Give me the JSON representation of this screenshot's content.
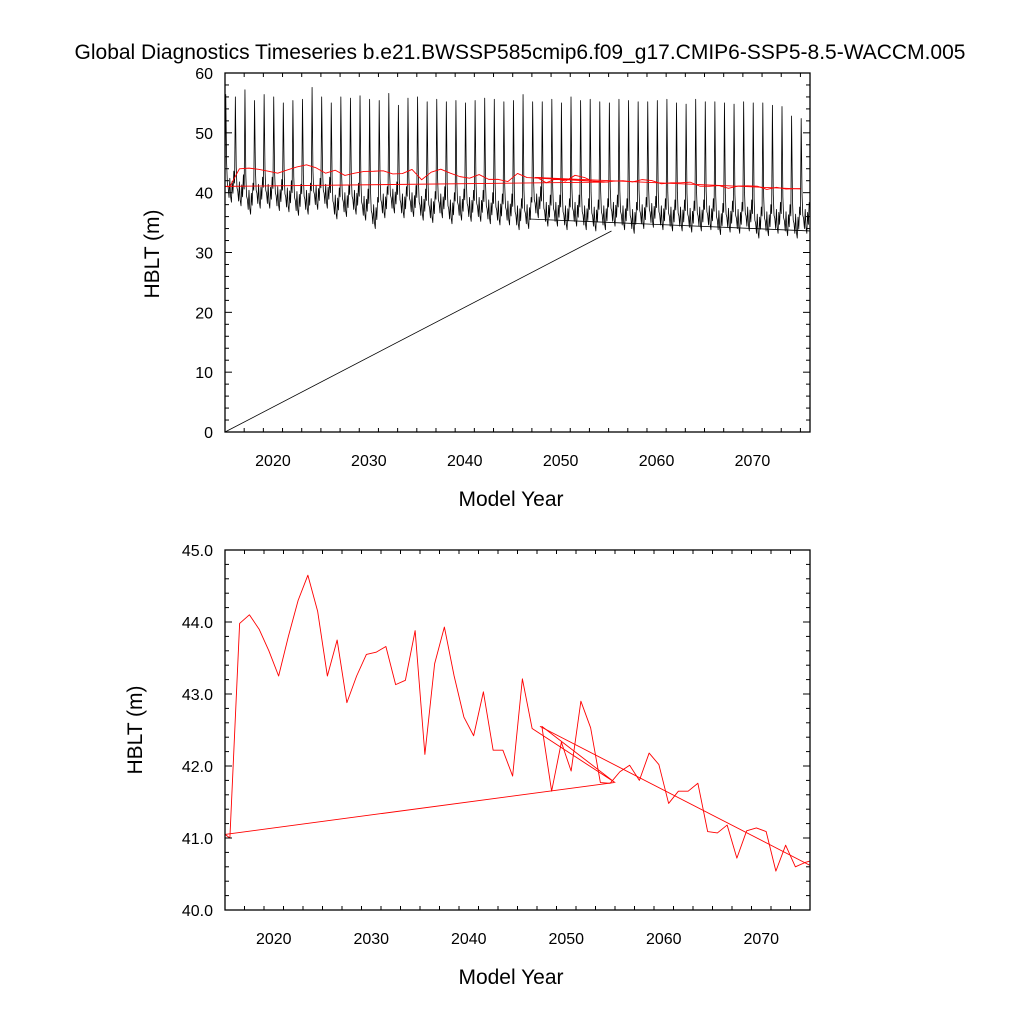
{
  "title": "Global Diagnostics Timeseries b.e21.BWSSP585cmip6.f09_g17.CMIP6-SSP5-8.5-WACCM.005",
  "colors": {
    "monthly": "#000000",
    "annual": "#ff0000",
    "frame": "#000000"
  },
  "chart_data": [
    {
      "type": "line",
      "xlabel": "Model Year",
      "ylabel": "HBLT (m)",
      "xlim": [
        2015,
        2076
      ],
      "ylim": [
        0,
        60
      ],
      "xticks": [
        2020,
        2030,
        2040,
        2050,
        2060,
        2070
      ],
      "xtick_labels": [
        "2020",
        "2030",
        "2040",
        "2050",
        "2060",
        "2070"
      ],
      "yticks": [
        0,
        10,
        20,
        30,
        40,
        50,
        60
      ],
      "ytick_labels": [
        "0",
        "10",
        "20",
        "30",
        "40",
        "50",
        "60"
      ],
      "series": [
        {
          "name": "monthly",
          "color": "#000000",
          "monthly_start_year": 2015,
          "monthly_peaks": [
            56.4,
            56.0,
            57.2,
            55.4,
            56.4,
            56.0,
            55.0,
            55.4,
            55.6,
            57.6,
            56.0,
            55.0,
            56.0,
            55.8,
            56.2,
            55.6,
            55.4,
            56.6,
            54.6,
            55.8,
            56.0,
            55.2,
            55.6,
            55.2,
            55.4,
            55.0,
            55.4,
            55.8,
            55.6,
            55.2,
            55.4,
            56.4,
            55.2,
            55.2,
            55.6,
            55.0,
            56.0,
            55.4,
            55.6,
            55.2,
            55.0,
            55.6,
            55.4,
            55.2,
            55.2,
            55.4,
            55.6,
            55.0,
            54.8,
            55.6,
            55.2,
            55.2,
            55.0,
            54.8,
            55.2,
            55.0,
            55.0,
            54.6,
            54.4,
            52.8,
            52.4
          ],
          "monthly_troughs": [
            38.4,
            37.8,
            36.4,
            37.4,
            37.4,
            37.0,
            36.8,
            36.2,
            36.4,
            37.2,
            37.4,
            35.6,
            36.0,
            36.4,
            35.4,
            34.0,
            35.8,
            36.6,
            35.8,
            36.0,
            35.4,
            35.0,
            35.8,
            34.8,
            35.4,
            35.2,
            35.2,
            34.8,
            34.6,
            34.6,
            33.8,
            34.0,
            35.8,
            34.4,
            34.4,
            33.8,
            34.4,
            33.8,
            33.6,
            33.8,
            34.4,
            33.8,
            33.2,
            34.0,
            34.2,
            33.8,
            33.6,
            33.6,
            33.4,
            33.6,
            33.8,
            33.0,
            33.4,
            33.2,
            33.6,
            32.4,
            32.8,
            33.2,
            32.8,
            32.4,
            33.2
          ],
          "wrap_segments": [
            {
              "x": [
                2015.0,
                2055.3
              ],
              "y": [
                0.0,
                33.6
              ]
            },
            {
              "x": [
                2046.7,
                2076.0
              ],
              "y": [
                35.6,
                33.6
              ]
            }
          ]
        },
        {
          "name": "annual",
          "color": "#ff0000",
          "x": [
            2015.0,
            2015.5,
            2016.5,
            2017.5,
            2018.5,
            2019.5,
            2020.5,
            2021.5,
            2022.5,
            2023.5,
            2024.5,
            2025.5,
            2026.5,
            2027.5,
            2028.5,
            2029.5,
            2030.5,
            2031.5,
            2032.5,
            2033.5,
            2034.5,
            2035.5,
            2036.5,
            2037.5,
            2038.5,
            2039.5,
            2040.5,
            2041.5,
            2042.5,
            2043.5,
            2044.5,
            2045.5,
            2046.5,
            2055.0,
            2047.5,
            2048.5,
            2049.5,
            2050.5,
            2051.5,
            2052.5,
            2053.5,
            2054.5,
            2055.5,
            2056.5,
            2057.5,
            2058.5,
            2059.5,
            2060.5,
            2061.5,
            2062.5,
            2063.5,
            2064.5,
            2065.5,
            2066.5,
            2067.5,
            2068.5,
            2069.5,
            2070.5,
            2071.5,
            2072.5,
            2073.5,
            2074.5,
            2075.0
          ],
          "y": [
            41.05,
            41.0,
            43.98,
            44.1,
            43.9,
            43.6,
            43.25,
            43.8,
            44.3,
            44.65,
            44.15,
            43.25,
            43.75,
            42.88,
            43.25,
            43.55,
            43.58,
            43.66,
            43.13,
            43.19,
            43.88,
            42.16,
            43.42,
            43.93,
            43.25,
            42.68,
            42.42,
            43.03,
            42.22,
            42.22,
            41.86,
            43.21,
            42.52,
            41.77,
            42.55,
            41.65,
            42.33,
            41.93,
            42.9,
            42.53,
            41.77,
            41.76,
            41.92,
            42.01,
            41.8,
            42.18,
            42.02,
            41.48,
            41.65,
            41.65,
            41.76,
            41.09,
            41.07,
            41.18,
            40.72,
            41.1,
            41.14,
            41.09,
            40.54,
            40.9,
            40.6,
            40.66,
            40.68
          ],
          "trend_segments": [
            {
              "x": [
                2015.0,
                2054.9
              ],
              "y": [
                41.05,
                41.77
              ]
            },
            {
              "x": [
                2047.3,
                2075.0
              ],
              "y": [
                42.55,
                40.62
              ]
            }
          ]
        }
      ]
    },
    {
      "type": "line",
      "xlabel": "Model Year",
      "ylabel": "HBLT (m)",
      "xlim": [
        2015,
        2075
      ],
      "ylim": [
        40,
        45
      ],
      "xticks": [
        2020,
        2030,
        2040,
        2050,
        2060,
        2070
      ],
      "xtick_labels": [
        "2020",
        "2030",
        "2040",
        "2050",
        "2060",
        "2070"
      ],
      "yticks": [
        40,
        41,
        42,
        43,
        44,
        45
      ],
      "ytick_labels": [
        "40.0",
        "41.0",
        "42.0",
        "43.0",
        "44.0",
        "45.0"
      ],
      "series": [
        {
          "name": "annual",
          "color": "#ff0000",
          "x": [
            2015.0,
            2015.5,
            2016.5,
            2017.5,
            2018.5,
            2019.5,
            2020.5,
            2021.5,
            2022.5,
            2023.5,
            2024.5,
            2025.5,
            2026.5,
            2027.5,
            2028.5,
            2029.5,
            2030.5,
            2031.5,
            2032.5,
            2033.5,
            2034.5,
            2035.5,
            2036.5,
            2037.5,
            2038.5,
            2039.5,
            2040.5,
            2041.5,
            2042.5,
            2043.5,
            2044.5,
            2045.5,
            2046.5,
            2055.0,
            2047.5,
            2048.5,
            2049.5,
            2050.5,
            2051.5,
            2052.5,
            2053.5,
            2054.5,
            2055.5,
            2056.5,
            2057.5,
            2058.5,
            2059.5,
            2060.5,
            2061.5,
            2062.5,
            2063.5,
            2064.5,
            2065.5,
            2066.5,
            2067.5,
            2068.5,
            2069.5,
            2070.5,
            2071.5,
            2072.5,
            2073.5,
            2074.5,
            2075.0
          ],
          "y": [
            41.05,
            41.0,
            43.98,
            44.1,
            43.9,
            43.6,
            43.25,
            43.8,
            44.3,
            44.65,
            44.15,
            43.25,
            43.75,
            42.88,
            43.25,
            43.55,
            43.58,
            43.66,
            43.13,
            43.19,
            43.88,
            42.16,
            43.42,
            43.93,
            43.25,
            42.68,
            42.42,
            43.03,
            42.22,
            42.22,
            41.86,
            43.21,
            42.52,
            41.77,
            42.55,
            41.65,
            42.33,
            41.93,
            42.9,
            42.53,
            41.77,
            41.76,
            41.92,
            42.01,
            41.8,
            42.18,
            42.02,
            41.48,
            41.65,
            41.65,
            41.76,
            41.09,
            41.07,
            41.18,
            40.72,
            41.1,
            41.14,
            41.09,
            40.54,
            40.9,
            40.6,
            40.66,
            40.68
          ],
          "trend_segments": [
            {
              "x": [
                2015.0,
                2054.9
              ],
              "y": [
                41.05,
                41.77
              ]
            },
            {
              "x": [
                2047.3,
                2075.0
              ],
              "y": [
                42.55,
                40.62
              ]
            }
          ]
        }
      ]
    }
  ]
}
